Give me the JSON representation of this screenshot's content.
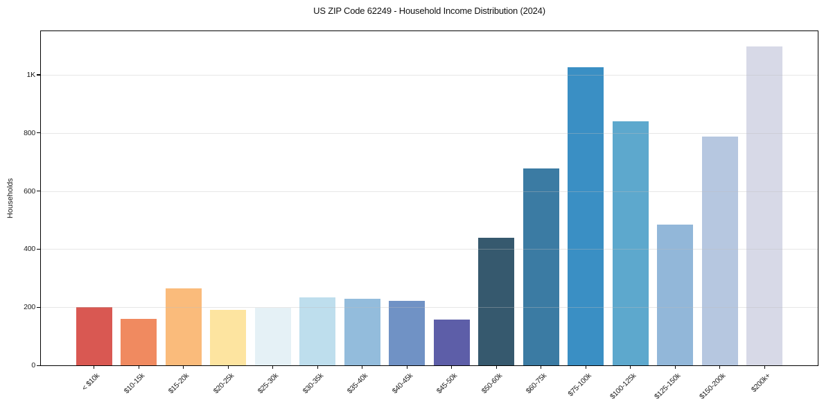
{
  "chart_data": {
    "type": "bar",
    "title": "US ZIP Code 62249 - Household Income Distribution (2024)",
    "xlabel": "",
    "ylabel": "Households",
    "categories": [
      "< $10k",
      "$10-15k",
      "$15-20k",
      "$20-25k",
      "$25-30k",
      "$30-35k",
      "$35-40k",
      "$40-45k",
      "$45-50k",
      "$50-60k",
      "$60-75k",
      "$75-100k",
      "$100-125k",
      "$125-150k",
      "$150-200k",
      "$200k+"
    ],
    "values": [
      200,
      161,
      264,
      191,
      197,
      233,
      230,
      221,
      158,
      440,
      677,
      1025,
      840,
      484,
      787,
      1098
    ],
    "bar_colors": [
      "#d95852",
      "#f08a60",
      "#fabb7b",
      "#fde4a0",
      "#e5f1f6",
      "#bedeed",
      "#93bcdc",
      "#7092c5",
      "#5d5ea8",
      "#36596e",
      "#3b7ba3",
      "#3a8fc4",
      "#5da8cd",
      "#92b7d9",
      "#b6c7e0",
      "#d7d9e7"
    ],
    "ylim": [
      0,
      1150
    ],
    "yticks": [
      {
        "value": 0,
        "label": "0"
      },
      {
        "value": 200,
        "label": "200"
      },
      {
        "value": 400,
        "label": "400"
      },
      {
        "value": 600,
        "label": "600"
      },
      {
        "value": 800,
        "label": "800"
      },
      {
        "value": 1000,
        "label": "1K"
      }
    ],
    "grid": true,
    "legend_position": "none",
    "colors": {
      "grid": "#e9e9e9",
      "axis": "#000000",
      "text": "#1a1a1a",
      "background": "#ffffff"
    }
  }
}
